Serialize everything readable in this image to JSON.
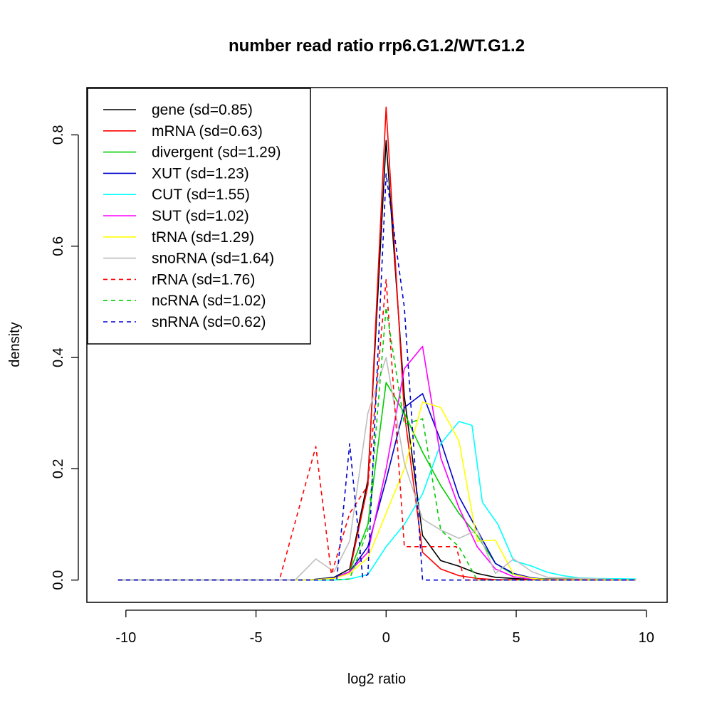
{
  "chart_data": {
    "type": "line",
    "title": "number read ratio rrp6.G1.2/WT.G1.2",
    "xlabel": "log2 ratio",
    "ylabel": "density",
    "xlim": [
      -11.5,
      10.8
    ],
    "ylim": [
      -0.04,
      0.885
    ],
    "xticks": [
      -10,
      -5,
      0,
      5,
      10
    ],
    "xtick_labels": [
      "-10",
      "-5",
      "0",
      "5",
      "10"
    ],
    "yticks": [
      0.0,
      0.2,
      0.4,
      0.6,
      0.8
    ],
    "ytick_labels": [
      "0.0",
      "0.2",
      "0.4",
      "0.6",
      "0.8"
    ],
    "legend_position": "top-left",
    "series": [
      {
        "name": "gene",
        "label": "gene (sd=0.85)",
        "color": "#000000",
        "dash": false,
        "x": [
          -10.3,
          -3.0,
          -2.0,
          -1.4,
          -0.7,
          0.0,
          0.7,
          1.4,
          2.1,
          2.8,
          3.5,
          4.2,
          4.9,
          5.6,
          9.6
        ],
        "y": [
          0,
          0,
          0.005,
          0.02,
          0.18,
          0.79,
          0.33,
          0.08,
          0.035,
          0.025,
          0.012,
          0.005,
          0.003,
          0.001,
          0
        ]
      },
      {
        "name": "mRNA",
        "label": "mRNA (sd=0.63)",
        "color": "#ff0000",
        "dash": false,
        "x": [
          -10.3,
          -3.0,
          -2.0,
          -1.4,
          -0.7,
          0.0,
          0.7,
          1.4,
          2.1,
          2.8,
          3.5,
          4.2,
          9.6
        ],
        "y": [
          0,
          0,
          0.004,
          0.015,
          0.17,
          0.85,
          0.3,
          0.05,
          0.02,
          0.008,
          0.003,
          0.001,
          0
        ]
      },
      {
        "name": "divergent",
        "label": "divergent (sd=1.29)",
        "color": "#00cd00",
        "dash": false,
        "x": [
          -10.3,
          -3.0,
          -2.0,
          -1.4,
          -0.7,
          0.0,
          0.7,
          1.4,
          2.1,
          2.8,
          3.5,
          4.2,
          4.9,
          5.6,
          9.6
        ],
        "y": [
          0,
          0,
          0.004,
          0.015,
          0.1,
          0.355,
          0.3,
          0.23,
          0.17,
          0.12,
          0.08,
          0.03,
          0.01,
          0.003,
          0
        ]
      },
      {
        "name": "XUT",
        "label": "XUT (sd=1.23)",
        "color": "#0000cd",
        "dash": false,
        "x": [
          -10.3,
          -3.0,
          -2.0,
          -1.4,
          -0.7,
          0.0,
          0.7,
          1.4,
          2.1,
          2.8,
          3.5,
          4.2,
          4.9,
          5.6,
          6.2,
          9.6
        ],
        "y": [
          0,
          0,
          0.004,
          0.015,
          0.06,
          0.18,
          0.31,
          0.335,
          0.25,
          0.15,
          0.09,
          0.03,
          0.012,
          0.004,
          0.001,
          0
        ]
      },
      {
        "name": "CUT",
        "label": "CUT (sd=1.55)",
        "color": "#00ffff",
        "dash": false,
        "x": [
          -10.3,
          -2.0,
          -1.4,
          -0.7,
          0.0,
          0.7,
          1.4,
          2.1,
          2.8,
          3.3,
          3.7,
          4.3,
          4.9,
          5.6,
          6.2,
          6.8,
          7.4,
          8.0,
          9.6
        ],
        "y": [
          0,
          0,
          0.002,
          0.01,
          0.06,
          0.1,
          0.155,
          0.245,
          0.285,
          0.278,
          0.14,
          0.1,
          0.035,
          0.025,
          0.014,
          0.008,
          0.004,
          0.003,
          0.002
        ]
      },
      {
        "name": "SUT",
        "label": "SUT (sd=1.02)",
        "color": "#ff00ff",
        "dash": false,
        "x": [
          -10.3,
          -3.0,
          -2.0,
          -1.4,
          -0.7,
          0.0,
          0.7,
          1.4,
          2.1,
          2.8,
          3.5,
          4.2,
          4.9,
          5.6,
          9.6
        ],
        "y": [
          0,
          0,
          0.003,
          0.015,
          0.05,
          0.2,
          0.38,
          0.42,
          0.22,
          0.13,
          0.06,
          0.02,
          0.006,
          0.002,
          0
        ]
      },
      {
        "name": "tRNA",
        "label": "tRNA (sd=1.29)",
        "color": "#ffff00",
        "dash": false,
        "x": [
          -10.3,
          -3.0,
          -2.0,
          -1.4,
          -0.7,
          0.0,
          0.7,
          1.4,
          2.1,
          2.8,
          3.5,
          4.2,
          4.9,
          5.6,
          6.2,
          9.6
        ],
        "y": [
          0,
          0,
          0.003,
          0.012,
          0.04,
          0.12,
          0.2,
          0.32,
          0.31,
          0.25,
          0.07,
          0.072,
          0.01,
          0.003,
          0.001,
          0
        ]
      },
      {
        "name": "snoRNA",
        "label": "snoRNA (sd=1.64)",
        "color": "#bebebe",
        "dash": false,
        "x": [
          -10.3,
          -3.5,
          -2.7,
          -2.0,
          -1.4,
          -0.7,
          0.0,
          0.7,
          1.4,
          2.1,
          2.8,
          3.5,
          4.2,
          4.9,
          5.6,
          6.2,
          9.6
        ],
        "y": [
          0,
          0,
          0.038,
          0.015,
          0.07,
          0.3,
          0.4,
          0.21,
          0.11,
          0.09,
          0.075,
          0.09,
          0.012,
          0.038,
          0.015,
          0.005,
          0
        ]
      },
      {
        "name": "rRNA",
        "label": "rRNA (sd=1.76)",
        "color": "#ff0000",
        "dash": true,
        "x": [
          -10.3,
          -4.1,
          -2.7,
          -2.1,
          -1.4,
          -0.7,
          0.0,
          0.7,
          1.4,
          2.1,
          2.7,
          3.0,
          9.6
        ],
        "y": [
          0,
          0,
          0.24,
          0.01,
          0.12,
          0.17,
          0.54,
          0.06,
          0.06,
          0.06,
          0.06,
          0,
          0
        ]
      },
      {
        "name": "ncRNA",
        "label": "ncRNA (sd=1.02)",
        "color": "#00cd00",
        "dash": true,
        "x": [
          -10.3,
          -2.0,
          -1.4,
          -0.7,
          0.0,
          0.7,
          1.4,
          2.1,
          2.8,
          3.5,
          9.6
        ],
        "y": [
          0,
          0,
          0.002,
          0.09,
          0.49,
          0.28,
          0.29,
          0.09,
          0.06,
          0,
          0
        ]
      },
      {
        "name": "snRNA",
        "label": "snRNA (sd=0.62)",
        "color": "#0000cd",
        "dash": true,
        "x": [
          -10.3,
          -1.9,
          -1.4,
          -0.9,
          -0.7,
          0.0,
          0.7,
          1.4,
          9.6
        ],
        "y": [
          0,
          0,
          0.245,
          0.005,
          0.01,
          0.73,
          0.49,
          0,
          0
        ]
      }
    ]
  }
}
